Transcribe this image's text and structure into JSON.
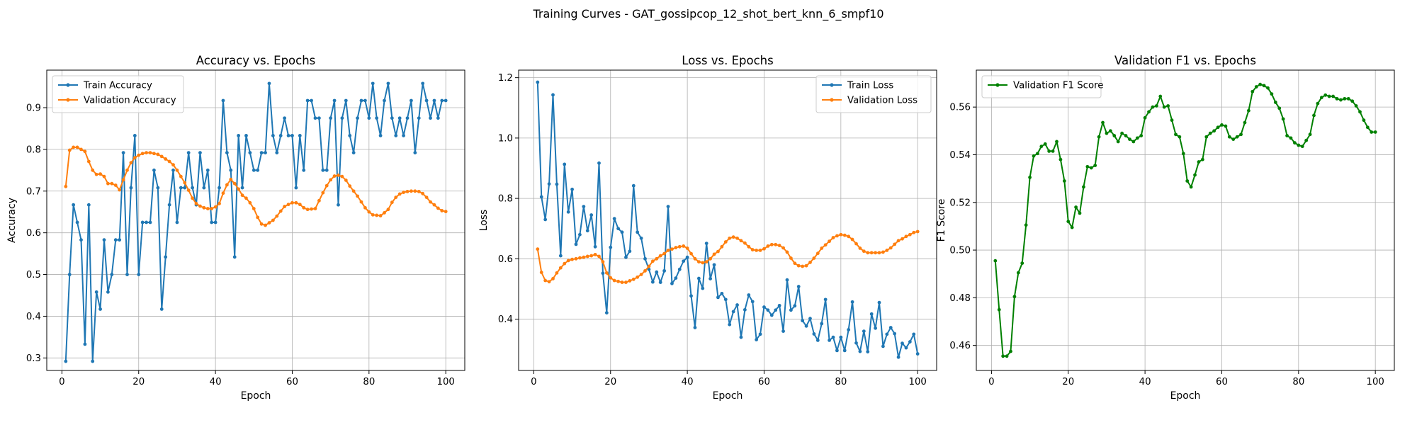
{
  "figure_title": "Training Curves - GAT_gossipcop_12_shot_bert_knn_6_smpf10",
  "chart_data": [
    {
      "type": "line",
      "title": "Accuracy vs. Epochs",
      "xlabel": "Epoch",
      "ylabel": "Accuracy",
      "xlim": [
        -3.95,
        104.95
      ],
      "ylim": [
        0.27,
        0.99
      ],
      "xticks": [
        0,
        20,
        40,
        60,
        80,
        100
      ],
      "yticks": [
        0.3,
        0.4,
        0.5,
        0.6,
        0.7,
        0.8,
        0.9
      ],
      "grid": true,
      "legend_position": "upper left",
      "x": [
        1,
        2,
        3,
        4,
        5,
        6,
        7,
        8,
        9,
        10,
        11,
        12,
        13,
        14,
        15,
        16,
        17,
        18,
        19,
        20,
        21,
        22,
        23,
        24,
        25,
        26,
        27,
        28,
        29,
        30,
        31,
        32,
        33,
        34,
        35,
        36,
        37,
        38,
        39,
        40,
        41,
        42,
        43,
        44,
        45,
        46,
        47,
        48,
        49,
        50,
        51,
        52,
        53,
        54,
        55,
        56,
        57,
        58,
        59,
        60,
        61,
        62,
        63,
        64,
        65,
        66,
        67,
        68,
        69,
        70,
        71,
        72,
        73,
        74,
        75,
        76,
        77,
        78,
        79,
        80,
        81,
        82,
        83,
        84,
        85,
        86,
        87,
        88,
        89,
        90,
        91,
        92,
        93,
        94,
        95,
        96,
        97,
        98,
        99,
        100
      ],
      "series": [
        {
          "name": "Train Accuracy",
          "color": "#1f77b4",
          "values": [
            0.292,
            0.5,
            0.667,
            0.625,
            0.583,
            0.333,
            0.667,
            0.292,
            0.458,
            0.417,
            0.583,
            0.458,
            0.5,
            0.583,
            0.583,
            0.792,
            0.5,
            0.708,
            0.833,
            0.5,
            0.625,
            0.625,
            0.625,
            0.75,
            0.708,
            0.417,
            0.542,
            0.667,
            0.75,
            0.625,
            0.708,
            0.708,
            0.792,
            0.708,
            0.667,
            0.792,
            0.708,
            0.75,
            0.625,
            0.625,
            0.708,
            0.917,
            0.792,
            0.75,
            0.542,
            0.833,
            0.708,
            0.833,
            0.792,
            0.75,
            0.75,
            0.792,
            0.792,
            0.958,
            0.833,
            0.792,
            0.833,
            0.875,
            0.833,
            0.833,
            0.708,
            0.833,
            0.75,
            0.917,
            0.917,
            0.875,
            0.875,
            0.75,
            0.75,
            0.875,
            0.917,
            0.667,
            0.875,
            0.917,
            0.833,
            0.792,
            0.875,
            0.917,
            0.917,
            0.875,
            0.958,
            0.875,
            0.833,
            0.917,
            0.958,
            0.875,
            0.833,
            0.875,
            0.833,
            0.875,
            0.917,
            0.792,
            0.875,
            0.958,
            0.917,
            0.875,
            0.917,
            0.875,
            0.917,
            0.917
          ]
        },
        {
          "name": "Validation Accuracy",
          "color": "#ff7f0e",
          "values": [
            0.711,
            0.798,
            0.805,
            0.805,
            0.8,
            0.795,
            0.771,
            0.75,
            0.74,
            0.741,
            0.735,
            0.718,
            0.718,
            0.714,
            0.703,
            0.727,
            0.75,
            0.768,
            0.78,
            0.786,
            0.79,
            0.792,
            0.792,
            0.79,
            0.788,
            0.783,
            0.777,
            0.771,
            0.763,
            0.75,
            0.735,
            0.72,
            0.702,
            0.683,
            0.67,
            0.664,
            0.66,
            0.658,
            0.658,
            0.662,
            0.67,
            0.695,
            0.715,
            0.728,
            0.718,
            0.705,
            0.69,
            0.683,
            0.672,
            0.658,
            0.637,
            0.621,
            0.618,
            0.624,
            0.63,
            0.64,
            0.652,
            0.663,
            0.668,
            0.672,
            0.672,
            0.668,
            0.66,
            0.656,
            0.657,
            0.658,
            0.677,
            0.696,
            0.713,
            0.727,
            0.736,
            0.738,
            0.735,
            0.726,
            0.712,
            0.7,
            0.688,
            0.674,
            0.66,
            0.65,
            0.643,
            0.642,
            0.641,
            0.648,
            0.656,
            0.673,
            0.685,
            0.693,
            0.697,
            0.699,
            0.7,
            0.7,
            0.699,
            0.694,
            0.685,
            0.674,
            0.667,
            0.659,
            0.653,
            0.651
          ]
        }
      ]
    },
    {
      "type": "line",
      "title": "Loss vs. Epochs",
      "xlabel": "Epoch",
      "ylabel": "Loss",
      "xlim": [
        -3.95,
        104.95
      ],
      "ylim": [
        0.23,
        1.225
      ],
      "xticks": [
        0,
        20,
        40,
        60,
        80,
        100
      ],
      "yticks": [
        0.4,
        0.6,
        0.8,
        1.0,
        1.2
      ],
      "grid": true,
      "legend_position": "upper right",
      "x": [
        1,
        2,
        3,
        4,
        5,
        6,
        7,
        8,
        9,
        10,
        11,
        12,
        13,
        14,
        15,
        16,
        17,
        18,
        19,
        20,
        21,
        22,
        23,
        24,
        25,
        26,
        27,
        28,
        29,
        30,
        31,
        32,
        33,
        34,
        35,
        36,
        37,
        38,
        39,
        40,
        41,
        42,
        43,
        44,
        45,
        46,
        47,
        48,
        49,
        50,
        51,
        52,
        53,
        54,
        55,
        56,
        57,
        58,
        59,
        60,
        61,
        62,
        63,
        64,
        65,
        66,
        67,
        68,
        69,
        70,
        71,
        72,
        73,
        74,
        75,
        76,
        77,
        78,
        79,
        80,
        81,
        82,
        83,
        84,
        85,
        86,
        87,
        88,
        89,
        90,
        91,
        92,
        93,
        94,
        95,
        96,
        97,
        98,
        99,
        100
      ],
      "series": [
        {
          "name": "Train Loss",
          "color": "#1f77b4",
          "values": [
            1.185,
            0.805,
            0.73,
            0.848,
            1.143,
            0.847,
            0.61,
            0.913,
            0.755,
            0.83,
            0.648,
            0.68,
            0.773,
            0.693,
            0.745,
            0.64,
            0.917,
            0.552,
            0.421,
            0.638,
            0.733,
            0.7,
            0.688,
            0.605,
            0.625,
            0.842,
            0.688,
            0.668,
            0.6,
            0.565,
            0.523,
            0.556,
            0.522,
            0.56,
            0.773,
            0.518,
            0.536,
            0.565,
            0.592,
            0.605,
            0.477,
            0.372,
            0.535,
            0.502,
            0.651,
            0.534,
            0.58,
            0.472,
            0.485,
            0.465,
            0.382,
            0.425,
            0.447,
            0.34,
            0.431,
            0.48,
            0.458,
            0.332,
            0.35,
            0.44,
            0.43,
            0.413,
            0.43,
            0.445,
            0.36,
            0.53,
            0.43,
            0.444,
            0.508,
            0.395,
            0.377,
            0.402,
            0.351,
            0.33,
            0.385,
            0.465,
            0.33,
            0.34,
            0.296,
            0.34,
            0.296,
            0.365,
            0.457,
            0.321,
            0.293,
            0.36,
            0.292,
            0.417,
            0.37,
            0.455,
            0.31,
            0.35,
            0.372,
            0.352,
            0.274,
            0.32,
            0.305,
            0.325,
            0.35,
            0.285
          ]
        },
        {
          "name": "Validation Loss",
          "color": "#ff7f0e",
          "values": [
            0.632,
            0.555,
            0.528,
            0.524,
            0.534,
            0.553,
            0.57,
            0.584,
            0.594,
            0.598,
            0.6,
            0.603,
            0.605,
            0.608,
            0.61,
            0.614,
            0.608,
            0.59,
            0.553,
            0.537,
            0.528,
            0.525,
            0.522,
            0.522,
            0.527,
            0.532,
            0.539,
            0.548,
            0.56,
            0.575,
            0.592,
            0.6,
            0.61,
            0.617,
            0.628,
            0.632,
            0.637,
            0.64,
            0.642,
            0.635,
            0.617,
            0.6,
            0.59,
            0.587,
            0.59,
            0.6,
            0.615,
            0.624,
            0.64,
            0.656,
            0.668,
            0.672,
            0.668,
            0.66,
            0.652,
            0.64,
            0.63,
            0.628,
            0.628,
            0.633,
            0.642,
            0.647,
            0.647,
            0.644,
            0.636,
            0.622,
            0.602,
            0.585,
            0.577,
            0.575,
            0.577,
            0.588,
            0.602,
            0.618,
            0.635,
            0.646,
            0.658,
            0.67,
            0.676,
            0.68,
            0.678,
            0.674,
            0.664,
            0.65,
            0.635,
            0.625,
            0.62,
            0.62,
            0.62,
            0.62,
            0.622,
            0.628,
            0.636,
            0.648,
            0.66,
            0.666,
            0.674,
            0.68,
            0.687,
            0.69
          ]
        }
      ]
    },
    {
      "type": "line",
      "title": "Validation F1 vs. Epochs",
      "xlabel": "Epoch",
      "ylabel": "F1 Score",
      "xlim": [
        -3.95,
        104.95
      ],
      "ylim": [
        0.4495,
        0.5755
      ],
      "xticks": [
        0,
        20,
        40,
        60,
        80,
        100
      ],
      "yticks": [
        0.46,
        0.48,
        0.5,
        0.52,
        0.54,
        0.56
      ],
      "grid": true,
      "legend_position": "upper left",
      "x": [
        1,
        2,
        3,
        4,
        5,
        6,
        7,
        8,
        9,
        10,
        11,
        12,
        13,
        14,
        15,
        16,
        17,
        18,
        19,
        20,
        21,
        22,
        23,
        24,
        25,
        26,
        27,
        28,
        29,
        30,
        31,
        32,
        33,
        34,
        35,
        36,
        37,
        38,
        39,
        40,
        41,
        42,
        43,
        44,
        45,
        46,
        47,
        48,
        49,
        50,
        51,
        52,
        53,
        54,
        55,
        56,
        57,
        58,
        59,
        60,
        61,
        62,
        63,
        64,
        65,
        66,
        67,
        68,
        69,
        70,
        71,
        72,
        73,
        74,
        75,
        76,
        77,
        78,
        79,
        80,
        81,
        82,
        83,
        84,
        85,
        86,
        87,
        88,
        89,
        90,
        91,
        92,
        93,
        94,
        95,
        96,
        97,
        98,
        99,
        100
      ],
      "series": [
        {
          "name": "Validation F1 Score",
          "color": "#008000",
          "values": [
            0.4955,
            0.475,
            0.4555,
            0.4555,
            0.4575,
            0.4805,
            0.4905,
            0.4945,
            0.5105,
            0.5305,
            0.5395,
            0.5405,
            0.5435,
            0.5445,
            0.5415,
            0.5415,
            0.5455,
            0.538,
            0.529,
            0.512,
            0.5095,
            0.518,
            0.5155,
            0.5265,
            0.535,
            0.5345,
            0.5355,
            0.5475,
            0.5535,
            0.549,
            0.55,
            0.548,
            0.5455,
            0.549,
            0.548,
            0.5465,
            0.5455,
            0.547,
            0.548,
            0.5555,
            0.558,
            0.56,
            0.5605,
            0.5645,
            0.56,
            0.5605,
            0.5545,
            0.5485,
            0.5475,
            0.5405,
            0.529,
            0.5265,
            0.5315,
            0.537,
            0.538,
            0.5475,
            0.549,
            0.55,
            0.5515,
            0.5525,
            0.552,
            0.5475,
            0.5465,
            0.5475,
            0.5485,
            0.5535,
            0.5585,
            0.5665,
            0.5685,
            0.5695,
            0.569,
            0.568,
            0.5655,
            0.562,
            0.5595,
            0.555,
            0.548,
            0.547,
            0.545,
            0.544,
            0.5435,
            0.546,
            0.5485,
            0.5565,
            0.5615,
            0.564,
            0.565,
            0.5645,
            0.5645,
            0.5635,
            0.563,
            0.5635,
            0.5635,
            0.5625,
            0.5605,
            0.558,
            0.5545,
            0.5515,
            0.5495,
            0.5495
          ]
        }
      ]
    }
  ]
}
